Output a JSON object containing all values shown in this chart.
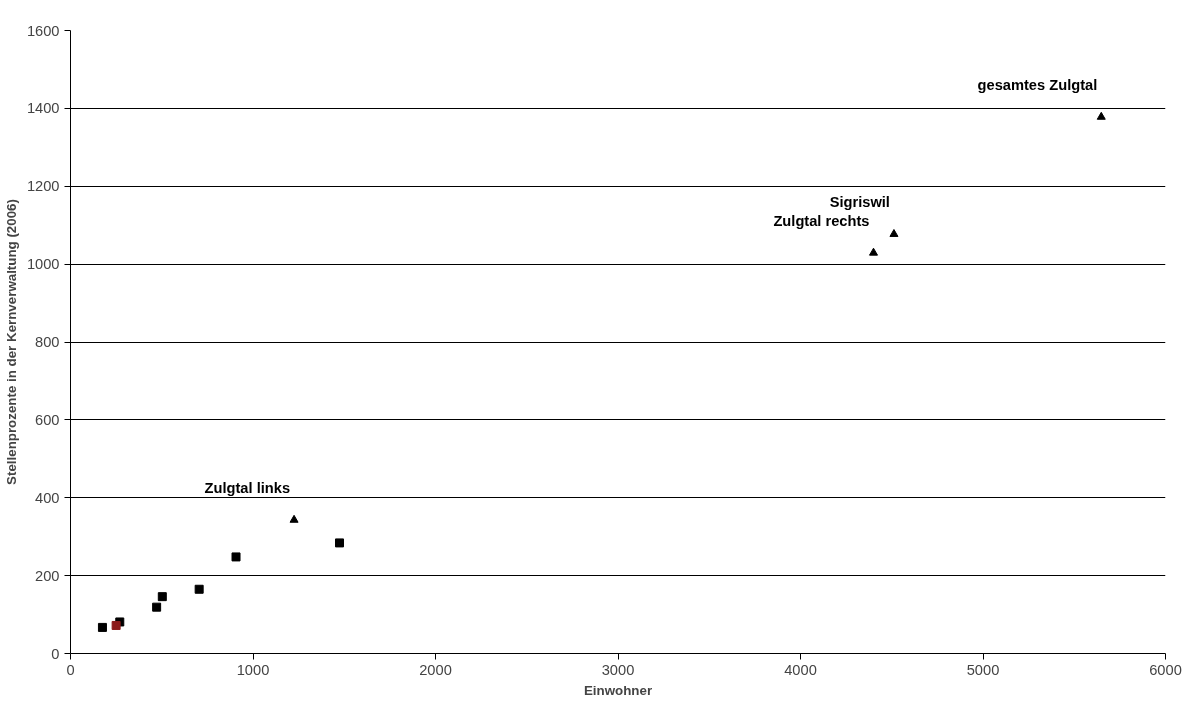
{
  "chart_data": {
    "type": "scatter",
    "xlabel": "Einwohner",
    "ylabel": "Stellenprozente in der Kernverwaltung (2006)",
    "xlim": [
      0,
      6000
    ],
    "xticks": [
      0,
      1000,
      2000,
      3000,
      4000,
      5000,
      6000
    ],
    "ylim": [
      0,
      1600
    ],
    "yticks": [
      0,
      200,
      400,
      600,
      800,
      1000,
      1200,
      1400,
      1600
    ],
    "grid": "y",
    "series": [
      {
        "color": "#000000",
        "marker": "square",
        "x": [
          175,
          270,
          472,
          503,
          705,
          907,
          1474
        ],
        "values": [
          67,
          81,
          119,
          146,
          165,
          248,
          284
        ]
      },
      {
        "color": "#8b1a1a",
        "marker": "square",
        "x": [
          250
        ],
        "values": [
          72
        ]
      },
      {
        "color": "#000000",
        "marker": "triangle",
        "x": [
          1225,
          4400,
          4512,
          5648
        ],
        "values": [
          343,
          1029,
          1077,
          1378
        ]
      }
    ],
    "annotations": [
      {
        "text": "Zulgtal links",
        "x": 1225,
        "y": 343
      },
      {
        "text": "Zulgtal rechts",
        "x": 4400,
        "y": 1029
      },
      {
        "text": "Sigriswil",
        "x": 4512,
        "y": 1077
      },
      {
        "text": "gesamtes Zulgtal",
        "x": 5648,
        "y": 1378
      }
    ]
  }
}
